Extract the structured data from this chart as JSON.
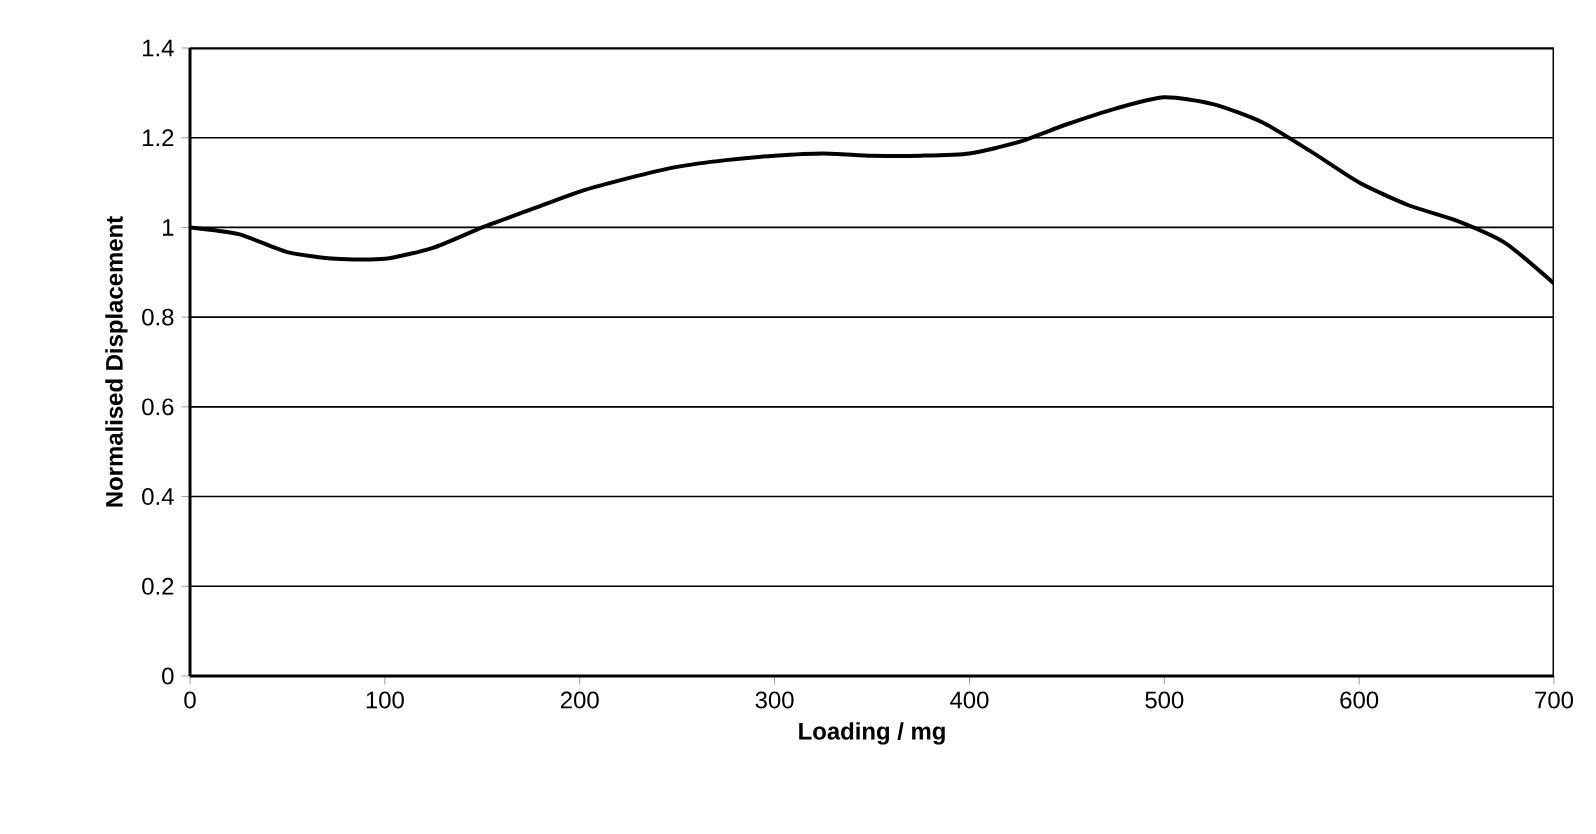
{
  "chart_data": {
    "type": "line",
    "xlabel": "Loading / mg",
    "ylabel": "Normalised Displacement",
    "x": [
      0,
      25,
      50,
      75,
      100,
      125,
      150,
      175,
      200,
      225,
      250,
      275,
      300,
      325,
      350,
      375,
      400,
      425,
      450,
      475,
      500,
      525,
      550,
      575,
      600,
      625,
      650,
      675,
      700
    ],
    "series": [
      {
        "color": "#000000",
        "values": [
          1.0,
          0.985,
          0.945,
          0.93,
          0.93,
          0.955,
          1.0,
          1.04,
          1.08,
          1.11,
          1.135,
          1.15,
          1.16,
          1.165,
          1.16,
          1.16,
          1.165,
          1.19,
          1.23,
          1.265,
          1.29,
          1.275,
          1.235,
          1.17,
          1.1,
          1.05,
          1.015,
          0.965,
          0.875
        ]
      }
    ],
    "xlim": [
      0,
      700
    ],
    "xticks": [
      0,
      100,
      200,
      300,
      400,
      500,
      600,
      700
    ],
    "ylim": [
      0,
      1.4
    ],
    "yticks": [
      0,
      0.2,
      0.4,
      0.6,
      0.8,
      1,
      1.2,
      1.4
    ],
    "grid": "y",
    "marker": "none",
    "line_style": "solid"
  }
}
